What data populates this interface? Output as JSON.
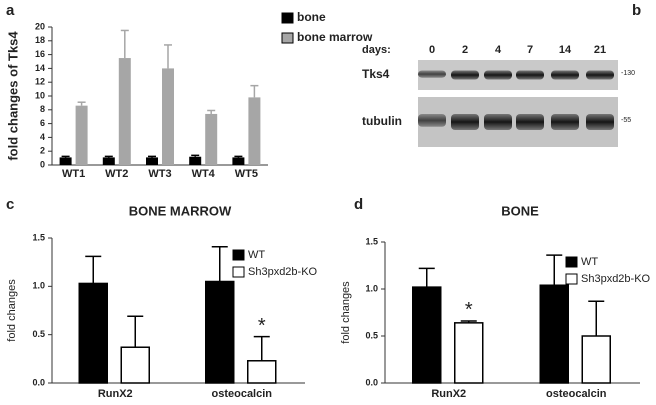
{
  "chart_data": [
    {
      "type": "bar",
      "panel": "a",
      "ylabel": "fold changes of Tks4",
      "categories": [
        "WT1",
        "WT2",
        "WT3",
        "WT4",
        "WT5"
      ],
      "series": [
        {
          "name": "bone",
          "color": "#000000",
          "values": [
            1.1,
            1.1,
            1.1,
            1.2,
            1.1
          ],
          "errors": [
            0.15,
            0.15,
            0.15,
            0.2,
            0.15
          ]
        },
        {
          "name": "bone marrow",
          "color": "#a6a6a6",
          "values": [
            8.6,
            15.5,
            14.0,
            7.4,
            9.8
          ],
          "errors": [
            0.5,
            4.0,
            3.4,
            0.5,
            1.7
          ]
        }
      ],
      "ylim": [
        0,
        20
      ],
      "yticks": [
        0,
        2,
        4,
        6,
        8,
        10,
        12,
        14,
        16,
        18,
        20
      ]
    },
    {
      "type": "bar",
      "panel": "c",
      "title": "BONE MARROW",
      "ylabel": "fold changes",
      "annotation": "*",
      "categories": [
        "RunX2",
        "osteocalcin"
      ],
      "series": [
        {
          "name": "WT",
          "color": "#000000",
          "values": [
            1.03,
            1.05
          ],
          "errors": [
            0.28,
            0.36
          ]
        },
        {
          "name": "Sh3pxd2b-KO",
          "color": "#ffffff",
          "values": [
            0.37,
            0.23
          ],
          "errors": [
            0.32,
            0.25
          ]
        }
      ],
      "ylim": [
        0,
        1.5
      ],
      "yticks": [
        {
          "value": 0,
          "label": "0.0"
        },
        {
          "value": 0.5,
          "label": "0.5"
        },
        {
          "value": 1,
          "label": "1.0"
        },
        {
          "value": 1.5,
          "label": "1.5"
        }
      ]
    },
    {
      "type": "bar",
      "panel": "d",
      "title": "BONE",
      "ylabel": "fold changes",
      "annotation": "*",
      "categories": [
        "RunX2",
        "osteocalcin"
      ],
      "series": [
        {
          "name": "WT",
          "color": "#000000",
          "values": [
            1.02,
            1.04
          ],
          "errors": [
            0.2,
            0.32
          ]
        },
        {
          "name": "Sh3pxd2b-KO",
          "color": "#ffffff",
          "values": [
            0.64,
            0.5
          ],
          "errors": [
            0.02,
            0.37
          ]
        }
      ],
      "ylim": [
        0,
        1.5
      ],
      "yticks": [
        {
          "value": 0,
          "label": "0.0"
        },
        {
          "value": 0.5,
          "label": "0.5"
        },
        {
          "value": 1,
          "label": "1.0"
        },
        {
          "value": 1.5,
          "label": "1.5"
        }
      ]
    }
  ],
  "blot": {
    "panel": "b",
    "days_label": "days:",
    "days": [
      "0",
      "2",
      "4",
      "7",
      "14",
      "21"
    ],
    "rows": [
      {
        "label": "Tks4",
        "marker": "-130"
      },
      {
        "label": "tubulin",
        "marker": "-55"
      }
    ]
  }
}
